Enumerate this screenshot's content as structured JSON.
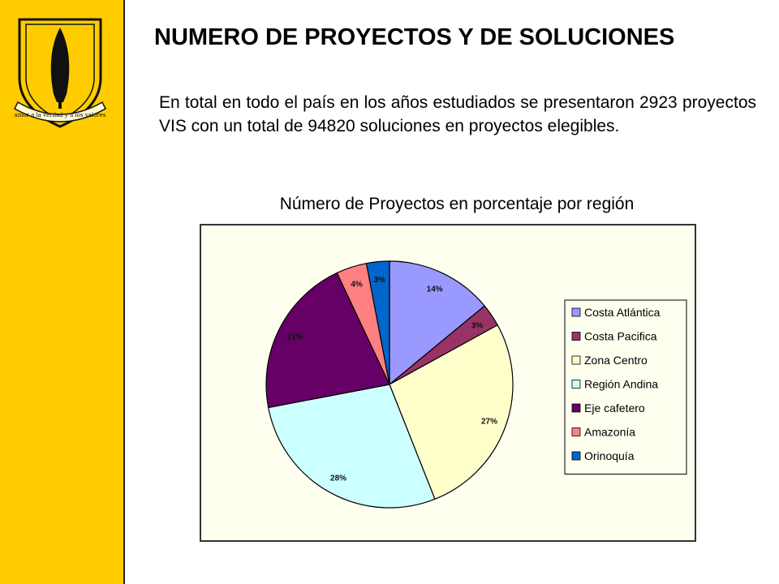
{
  "page": {
    "title": "NUMERO DE PROYECTOS Y DE SOLUCIONES",
    "intro": "En total en todo el país en los años estudiados se presentaron 2923 proyectos VIS con un total de 94820 soluciones en proyectos elegibles."
  },
  "sidebar": {
    "background": "#FFCC00",
    "logo": {
      "icon": "university-crest-icon",
      "motto": "amor a la verdad y a los valores"
    }
  },
  "chart_data": {
    "type": "pie",
    "title": "Número de Proyectos en porcentaje por región",
    "legend_position": "right",
    "categories": [
      "Costa Atlántica",
      "Costa Pacifica",
      "Zona Centro",
      "Región Andina",
      "Eje cafetero",
      "Amazonía",
      "Orinoquía"
    ],
    "values": [
      14,
      3,
      27,
      28,
      21,
      4,
      3
    ],
    "labels": [
      "14%",
      "3%",
      "27%",
      "28%",
      "21%",
      "4%",
      "3%"
    ],
    "colors": [
      "#9999FF",
      "#993366",
      "#FFFFCC",
      "#CCFFFF",
      "#660066",
      "#FF8080",
      "#0066CC"
    ]
  }
}
